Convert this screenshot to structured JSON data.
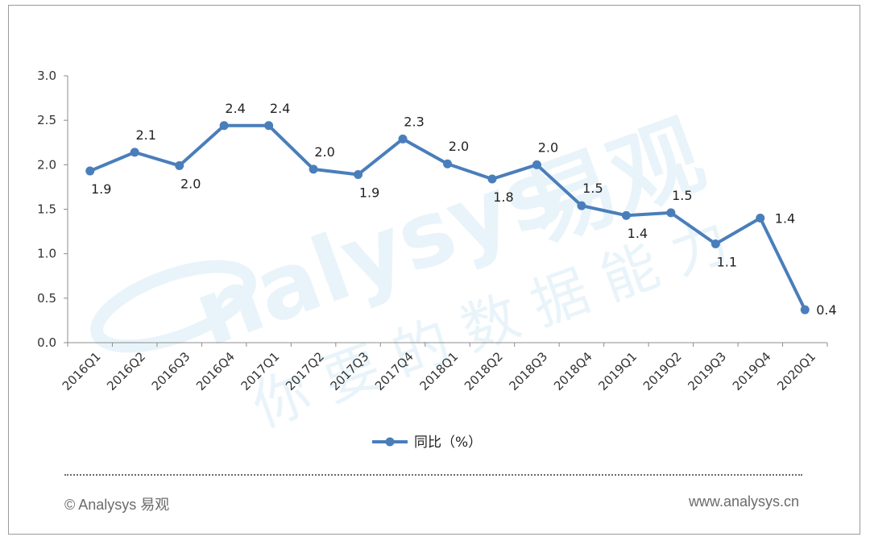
{
  "chart_data": {
    "type": "line",
    "categories": [
      "2016Q1",
      "2016Q2",
      "2016Q3",
      "2016Q4",
      "2017Q1",
      "2017Q2",
      "2017Q3",
      "2017Q4",
      "2018Q1",
      "2018Q2",
      "2018Q3",
      "2018Q4",
      "2019Q1",
      "2019Q2",
      "2019Q3",
      "2019Q4",
      "2020Q1"
    ],
    "series": [
      {
        "name": "同比（%）",
        "values": [
          1.93,
          2.14,
          1.99,
          2.44,
          2.44,
          1.95,
          1.89,
          2.29,
          2.01,
          1.84,
          2.0,
          1.54,
          1.43,
          1.46,
          1.11,
          1.4,
          0.37
        ],
        "labels": [
          "1.9",
          "2.1",
          "2.0",
          "2.4",
          "2.4",
          "2.0",
          "1.9",
          "2.3",
          "2.0",
          "1.8",
          "2.0",
          "1.5",
          "1.4",
          "1.5",
          "1.1",
          "1.4",
          "0.4"
        ],
        "color": "#4a7ebb"
      }
    ],
    "ylim": [
      0,
      3.0
    ],
    "yticks": [
      "0.0",
      "0.5",
      "1.0",
      "1.5",
      "2.0",
      "2.5",
      "3.0"
    ],
    "grid": false,
    "legend_position": "bottom"
  },
  "watermark": {
    "brand": "nalysys",
    "brand_cn": "易观",
    "slogan": "你要的数据能力"
  },
  "footer": {
    "copyright": "© Analysys 易观",
    "website": "www.analysys.cn"
  }
}
